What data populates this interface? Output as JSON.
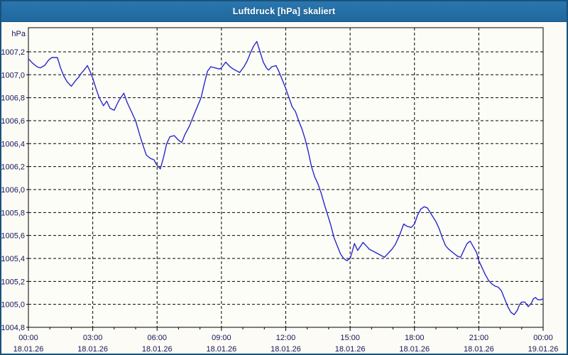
{
  "window": {
    "title": "Luftdruck [hPa] skaliert"
  },
  "colors": {
    "titlebar_blue": "#2470A8",
    "window_border": "#17527E",
    "panel_bg": "#FCFBF5",
    "plot_bg": "#FDFDF8",
    "grid": "#000000",
    "axis": "#000000",
    "label_text": "#15155C",
    "line": "#2828CC"
  },
  "chart_data": {
    "type": "line",
    "title": "Luftdruck [hPa] skaliert",
    "ylabel": "hPa",
    "xlabel": "",
    "legend": "none",
    "grid": "dashed",
    "x_range_hours": [
      0,
      24
    ],
    "ylim": [
      1004.8,
      1007.41
    ],
    "y_ticks": [
      {
        "value": 1007.2,
        "label": "1007,2"
      },
      {
        "value": 1007.0,
        "label": "1007,0"
      },
      {
        "value": 1006.8,
        "label": "1006,8"
      },
      {
        "value": 1006.6,
        "label": "1006,6"
      },
      {
        "value": 1006.4,
        "label": "1006,4"
      },
      {
        "value": 1006.2,
        "label": "1006,2"
      },
      {
        "value": 1006.0,
        "label": "1006,0"
      },
      {
        "value": 1005.8,
        "label": "1005,8"
      },
      {
        "value": 1005.6,
        "label": "1005,6"
      },
      {
        "value": 1005.4,
        "label": "1005,4"
      },
      {
        "value": 1005.2,
        "label": "1005,2"
      },
      {
        "value": 1005.0,
        "label": "1005,0"
      },
      {
        "value": 1004.8,
        "label": "1004,8"
      }
    ],
    "x_ticks": [
      {
        "hour": 0,
        "time": "00:00",
        "date": "18.01.26"
      },
      {
        "hour": 3,
        "time": "03:00",
        "date": "18.01.26"
      },
      {
        "hour": 6,
        "time": "06:00",
        "date": "18.01.26"
      },
      {
        "hour": 9,
        "time": "09:00",
        "date": "18.01.26"
      },
      {
        "hour": 12,
        "time": "12:00",
        "date": "18.01.26"
      },
      {
        "hour": 15,
        "time": "15:00",
        "date": "18.01.26"
      },
      {
        "hour": 18,
        "time": "18:00",
        "date": "18.01.26"
      },
      {
        "hour": 21,
        "time": "21:00",
        "date": "18.01.26"
      },
      {
        "hour": 24,
        "time": "00:00",
        "date": "19.01.26"
      }
    ],
    "series": [
      {
        "name": "Luftdruck",
        "unit": "hPa",
        "points": [
          [
            0.0,
            1007.14
          ],
          [
            0.2,
            1007.1
          ],
          [
            0.4,
            1007.07
          ],
          [
            0.55,
            1007.06
          ],
          [
            0.75,
            1007.08
          ],
          [
            0.95,
            1007.13
          ],
          [
            1.1,
            1007.15
          ],
          [
            1.35,
            1007.15
          ],
          [
            1.5,
            1007.06
          ],
          [
            1.65,
            1006.99
          ],
          [
            1.8,
            1006.94
          ],
          [
            2.0,
            1006.9
          ],
          [
            2.2,
            1006.95
          ],
          [
            2.35,
            1006.98
          ],
          [
            2.45,
            1007.01
          ],
          [
            2.55,
            1007.03
          ],
          [
            2.75,
            1007.08
          ],
          [
            2.9,
            1007.02
          ],
          [
            3.0,
            1006.97
          ],
          [
            3.15,
            1006.88
          ],
          [
            3.3,
            1006.8
          ],
          [
            3.5,
            1006.73
          ],
          [
            3.65,
            1006.77
          ],
          [
            3.8,
            1006.71
          ],
          [
            4.0,
            1006.69
          ],
          [
            4.2,
            1006.77
          ],
          [
            4.45,
            1006.84
          ],
          [
            4.6,
            1006.76
          ],
          [
            4.8,
            1006.68
          ],
          [
            5.0,
            1006.6
          ],
          [
            5.15,
            1006.5
          ],
          [
            5.3,
            1006.41
          ],
          [
            5.5,
            1006.3
          ],
          [
            5.7,
            1006.27
          ],
          [
            5.85,
            1006.26
          ],
          [
            6.0,
            1006.21
          ],
          [
            6.15,
            1006.18
          ],
          [
            6.3,
            1006.28
          ],
          [
            6.45,
            1006.4
          ],
          [
            6.6,
            1006.46
          ],
          [
            6.8,
            1006.47
          ],
          [
            7.0,
            1006.43
          ],
          [
            7.15,
            1006.41
          ],
          [
            7.3,
            1006.48
          ],
          [
            7.5,
            1006.55
          ],
          [
            7.65,
            1006.62
          ],
          [
            7.85,
            1006.71
          ],
          [
            8.05,
            1006.8
          ],
          [
            8.2,
            1006.92
          ],
          [
            8.35,
            1007.03
          ],
          [
            8.5,
            1007.07
          ],
          [
            8.7,
            1007.06
          ],
          [
            8.9,
            1007.05
          ],
          [
            9.0,
            1007.06
          ],
          [
            9.2,
            1007.11
          ],
          [
            9.4,
            1007.07
          ],
          [
            9.55,
            1007.05
          ],
          [
            9.85,
            1007.02
          ],
          [
            10.05,
            1007.07
          ],
          [
            10.2,
            1007.12
          ],
          [
            10.35,
            1007.19
          ],
          [
            10.5,
            1007.25
          ],
          [
            10.65,
            1007.29
          ],
          [
            10.8,
            1007.2
          ],
          [
            10.95,
            1007.11
          ],
          [
            11.1,
            1007.06
          ],
          [
            11.2,
            1007.04
          ],
          [
            11.35,
            1007.07
          ],
          [
            11.55,
            1007.08
          ],
          [
            11.7,
            1007.02
          ],
          [
            11.85,
            1006.95
          ],
          [
            12.0,
            1006.88
          ],
          [
            12.15,
            1006.8
          ],
          [
            12.3,
            1006.72
          ],
          [
            12.45,
            1006.68
          ],
          [
            12.6,
            1006.6
          ],
          [
            12.75,
            1006.53
          ],
          [
            12.9,
            1006.44
          ],
          [
            13.05,
            1006.33
          ],
          [
            13.2,
            1006.2
          ],
          [
            13.35,
            1006.11
          ],
          [
            13.5,
            1006.05
          ],
          [
            13.65,
            1005.97
          ],
          [
            13.8,
            1005.87
          ],
          [
            13.95,
            1005.78
          ],
          [
            14.1,
            1005.69
          ],
          [
            14.25,
            1005.58
          ],
          [
            14.4,
            1005.51
          ],
          [
            14.55,
            1005.44
          ],
          [
            14.7,
            1005.4
          ],
          [
            14.85,
            1005.38
          ],
          [
            15.0,
            1005.4
          ],
          [
            15.1,
            1005.46
          ],
          [
            15.2,
            1005.53
          ],
          [
            15.35,
            1005.47
          ],
          [
            15.5,
            1005.51
          ],
          [
            15.6,
            1005.54
          ],
          [
            15.75,
            1005.51
          ],
          [
            15.9,
            1005.48
          ],
          [
            16.1,
            1005.46
          ],
          [
            16.3,
            1005.44
          ],
          [
            16.6,
            1005.41
          ],
          [
            16.8,
            1005.45
          ],
          [
            16.95,
            1005.48
          ],
          [
            17.1,
            1005.52
          ],
          [
            17.3,
            1005.6
          ],
          [
            17.5,
            1005.7
          ],
          [
            17.65,
            1005.68
          ],
          [
            17.85,
            1005.67
          ],
          [
            18.0,
            1005.7
          ],
          [
            18.15,
            1005.78
          ],
          [
            18.3,
            1005.83
          ],
          [
            18.45,
            1005.85
          ],
          [
            18.6,
            1005.84
          ],
          [
            18.8,
            1005.78
          ],
          [
            19.0,
            1005.72
          ],
          [
            19.15,
            1005.66
          ],
          [
            19.3,
            1005.58
          ],
          [
            19.45,
            1005.51
          ],
          [
            19.6,
            1005.48
          ],
          [
            19.8,
            1005.45
          ],
          [
            20.0,
            1005.42
          ],
          [
            20.15,
            1005.41
          ],
          [
            20.3,
            1005.47
          ],
          [
            20.45,
            1005.53
          ],
          [
            20.6,
            1005.55
          ],
          [
            20.75,
            1005.5
          ],
          [
            20.9,
            1005.45
          ],
          [
            21.0,
            1005.38
          ],
          [
            21.15,
            1005.32
          ],
          [
            21.3,
            1005.26
          ],
          [
            21.45,
            1005.21
          ],
          [
            21.6,
            1005.18
          ],
          [
            21.75,
            1005.16
          ],
          [
            21.9,
            1005.15
          ],
          [
            22.05,
            1005.12
          ],
          [
            22.2,
            1005.05
          ],
          [
            22.35,
            1004.98
          ],
          [
            22.5,
            1004.93
          ],
          [
            22.65,
            1004.91
          ],
          [
            22.8,
            1004.95
          ],
          [
            22.9,
            1005.0
          ],
          [
            23.0,
            1005.02
          ],
          [
            23.15,
            1005.02
          ],
          [
            23.3,
            1004.98
          ],
          [
            23.45,
            1005.01
          ],
          [
            23.55,
            1005.05
          ],
          [
            23.65,
            1005.06
          ],
          [
            23.75,
            1005.04
          ],
          [
            23.9,
            1005.04
          ],
          [
            24.0,
            1005.05
          ]
        ]
      }
    ]
  }
}
